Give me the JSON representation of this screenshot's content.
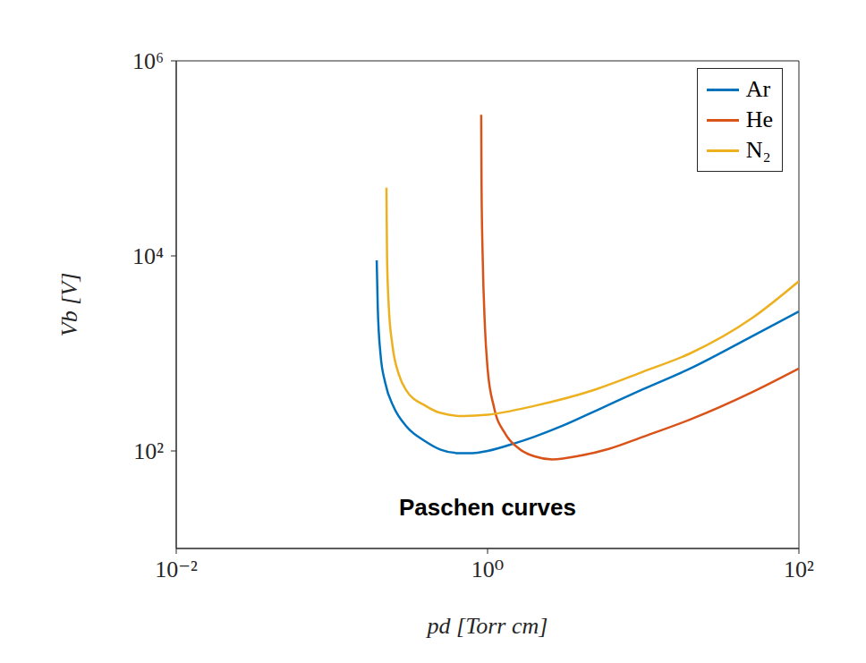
{
  "chart_data": {
    "type": "line",
    "annotation": "Paschen curves",
    "xlabel": "pd [Torr cm]",
    "ylabel": "Vb [V]",
    "log": true,
    "grid": false,
    "legend": "upper right",
    "xlim": [
      0.01,
      100
    ],
    "ylim": [
      10,
      1000000
    ],
    "xticks": [
      {
        "value": 0.01,
        "label": "10⁻²"
      },
      {
        "value": 1,
        "label": "10⁰"
      },
      {
        "value": 100,
        "label": "10²"
      }
    ],
    "yticks": [
      {
        "value": 100,
        "label": "10²"
      },
      {
        "value": 10000,
        "label": "10⁴"
      },
      {
        "value": 1000000,
        "label": "10⁶"
      }
    ],
    "series": [
      {
        "name": "Ar",
        "color": "#0072BD",
        "x": [
          0.194,
          0.197,
          0.205,
          0.22,
          0.25,
          0.3,
          0.4,
          0.5,
          0.65,
          0.8,
          1.0,
          1.5,
          2,
          3,
          5,
          10,
          20,
          50,
          100
        ],
        "values": [
          9000,
          3000,
          1000,
          500,
          280,
          180,
          125,
          103,
          95,
          95,
          100,
          120,
          140,
          180,
          260,
          430,
          700,
          1500,
          2700
        ]
      },
      {
        "name": "He",
        "color": "#D95319",
        "x": [
          0.91,
          0.915,
          0.93,
          0.96,
          1.0,
          1.1,
          1.3,
          1.6,
          2,
          2.6,
          4,
          6,
          10,
          20,
          50,
          100
        ],
        "values": [
          280000,
          50000,
          10000,
          2000,
          700,
          280,
          150,
          105,
          88,
          82,
          90,
          105,
          140,
          210,
          400,
          700
        ]
      },
      {
        "name": "N₂",
        "color": "#EDB120",
        "x": [
          0.224,
          0.226,
          0.232,
          0.245,
          0.27,
          0.3,
          0.4,
          0.5,
          0.7,
          1,
          2,
          5,
          10,
          20,
          50,
          100
        ],
        "values": [
          50000,
          10000,
          3000,
          1200,
          600,
          420,
          290,
          245,
          228,
          235,
          290,
          430,
          650,
          1000,
          2300,
          5500
        ]
      }
    ]
  }
}
